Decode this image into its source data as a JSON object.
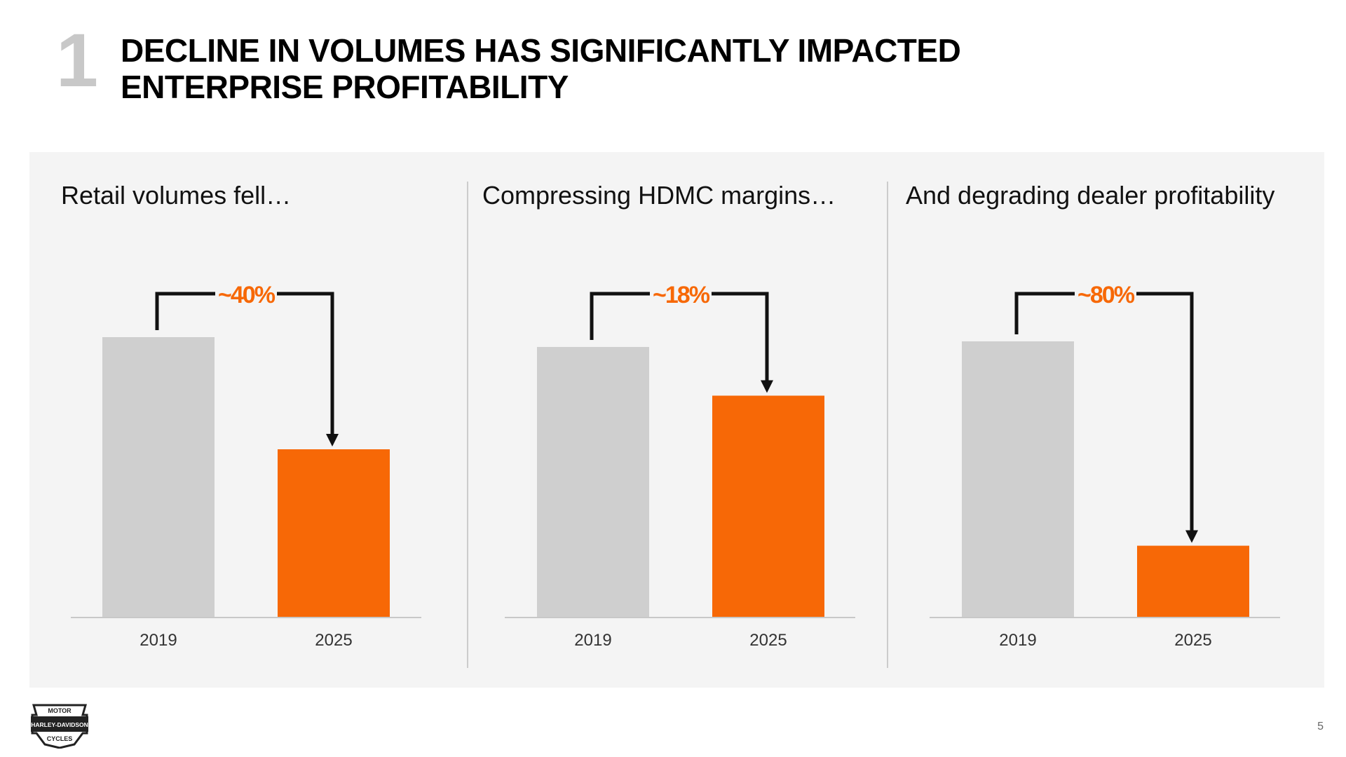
{
  "slide": {
    "number": "1",
    "title_line1": "DECLINE IN VOLUMES HAS SIGNIFICANTLY IMPACTED",
    "title_line2": "ENTERPRISE PROFITABILITY",
    "page_number": "5"
  },
  "logo": {
    "text_top": "MOTOR",
    "text_mid": "HARLEY-DAVIDSON",
    "text_bottom": "CYCLES"
  },
  "colors": {
    "bar_2019": "#cfcfcf",
    "bar_2025": "#f76806",
    "change_label": "#f76806",
    "arrow": "#111111",
    "panel_bg": "#f4f4f4"
  },
  "chart_data": [
    {
      "type": "bar",
      "title": "Retail volumes fell…",
      "categories": [
        "2019",
        "2025"
      ],
      "values": [
        100,
        60
      ],
      "change_label": "~40%",
      "ylim": [
        0,
        100
      ],
      "grid": false
    },
    {
      "type": "bar",
      "title": "Compressing HDMC margins…",
      "categories": [
        "2019",
        "2025"
      ],
      "values": [
        100,
        82
      ],
      "change_label": "~18%",
      "ylim": [
        0,
        100
      ],
      "grid": false
    },
    {
      "type": "bar",
      "title": "And degrading dealer profitability",
      "categories": [
        "2019",
        "2025"
      ],
      "values": [
        100,
        26
      ],
      "change_label": "~80%",
      "ylim": [
        0,
        100
      ],
      "grid": false
    }
  ]
}
